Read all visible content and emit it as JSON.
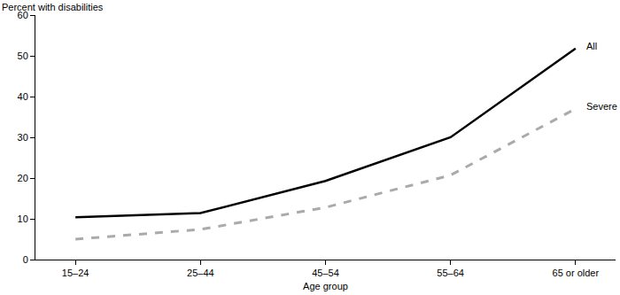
{
  "chart_data": {
    "type": "line",
    "y_label": "Percent with disabilities",
    "x_label": "Age group",
    "categories": [
      "15–24",
      "25–44",
      "45–54",
      "55–64",
      "65 or older"
    ],
    "series": [
      {
        "name": "All",
        "color": "#000000",
        "line_style": "solid",
        "values": [
          10.4,
          11.4,
          19.3,
          30.0,
          51.8
        ]
      },
      {
        "name": "Severe",
        "color": "#aaaaaa",
        "line_style": "dashed",
        "values": [
          5.0,
          7.4,
          12.8,
          20.7,
          37.0
        ]
      }
    ],
    "ylim": [
      0,
      60
    ],
    "yticks": [
      0,
      10,
      20,
      30,
      40,
      50,
      60
    ],
    "grid": false
  }
}
